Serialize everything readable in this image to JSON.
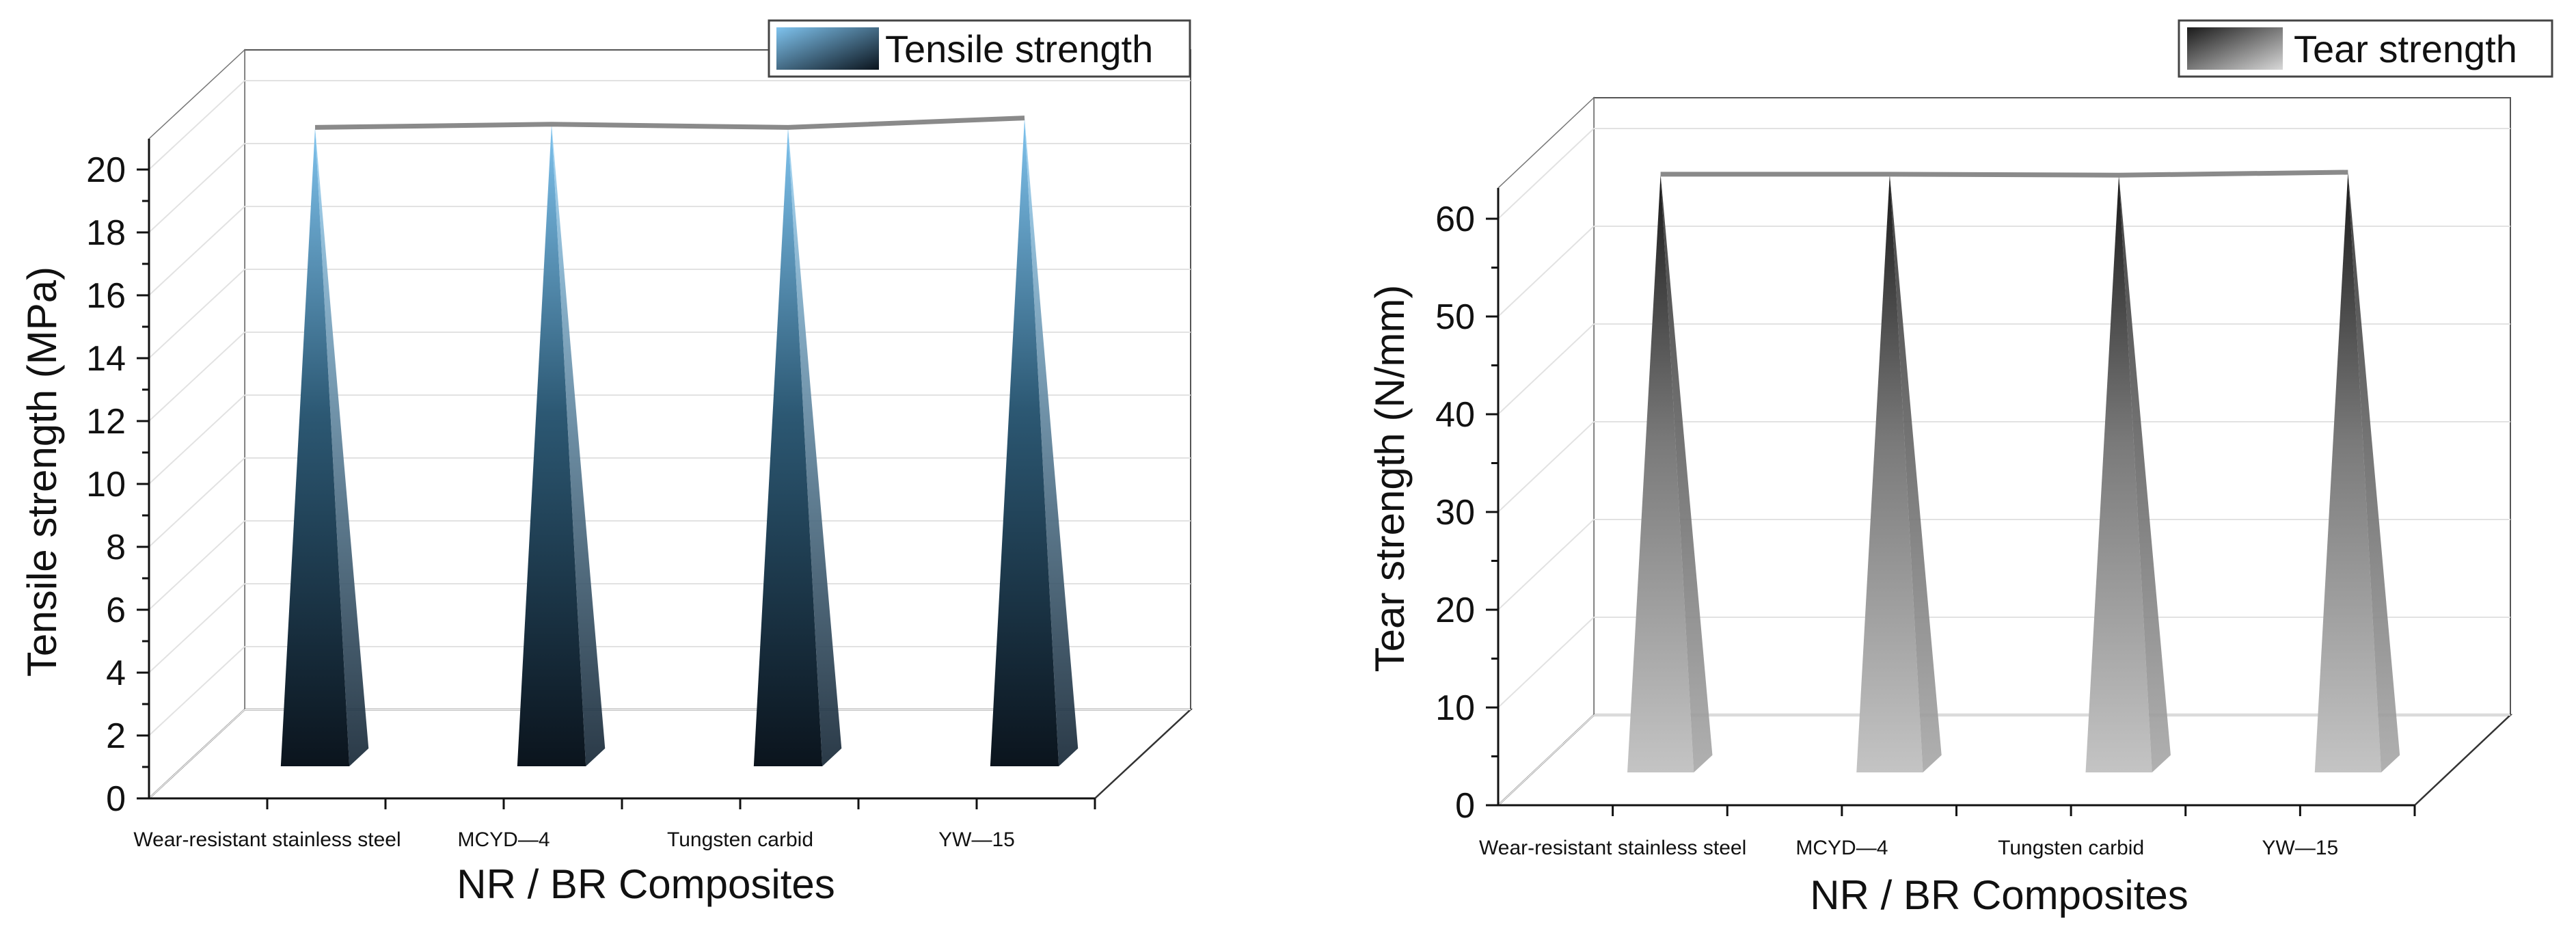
{
  "chart_data": [
    {
      "type": "bar",
      "style": "3d-pyramid",
      "categories": [
        "Wear-resistant stainless steel",
        "MCYD—4",
        "Tungsten carbid",
        "YW—15"
      ],
      "values": [
        20.1,
        20.2,
        20.1,
        20.4
      ],
      "series_name": "Tensile strength",
      "xlabel": "NR / BR Composites",
      "ylabel": "Tensile strength (MPa)",
      "ylim": [
        0,
        20
      ],
      "yticks": [
        "0",
        "2",
        "4",
        "6",
        "8",
        "10",
        "12",
        "14",
        "16",
        "18",
        "20"
      ],
      "grid": true,
      "legend_position": "top-right",
      "colors": {
        "top": "#7fc3ee",
        "bottom": "#0b141d",
        "line": "#8a8a8a"
      }
    },
    {
      "type": "bar",
      "style": "3d-pyramid",
      "categories": [
        "Wear-resistant stainless steel",
        "MCYD—4",
        "Tungsten carbid",
        "YW—15"
      ],
      "values": [
        60.5,
        60.5,
        60.4,
        60.7
      ],
      "series_name": "Tear strength",
      "xlabel": "NR / BR Composites",
      "ylabel": "Tear strength (N/mm)",
      "ylim": [
        0,
        60
      ],
      "yticks": [
        "0",
        "10",
        "20",
        "30",
        "40",
        "50",
        "60"
      ],
      "grid": true,
      "legend_position": "top-right",
      "colors": {
        "top": "#1a1a1a",
        "bottom": "#c4c4c4",
        "line": "#8a8a8a"
      }
    }
  ]
}
